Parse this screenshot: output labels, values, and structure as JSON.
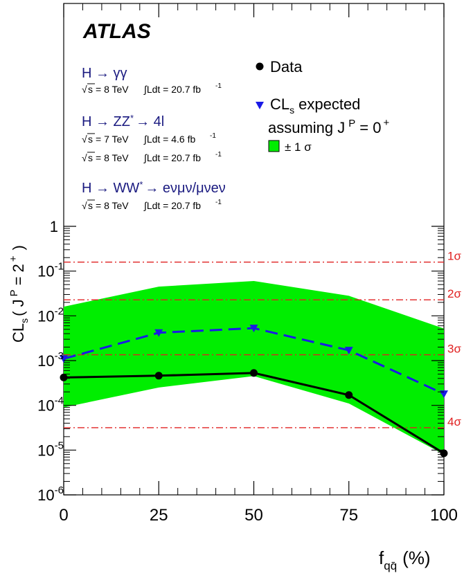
{
  "chart_data": {
    "type": "line",
    "experiment": "ATLAS",
    "xlabel_main": "f",
    "xlabel_sub": "qq̄",
    "xlabel_unit": "(%)",
    "ylabel_main": "CL",
    "ylabel_sub": "s",
    "ylabel_rest": "( J",
    "ylabel_sup": "P",
    "ylabel_tail": "= 2",
    "ylabel_plus": "+",
    "ylabel_close": ")",
    "xlim": [
      0,
      100
    ],
    "ylim": [
      1e-06,
      1
    ],
    "yscale": "log",
    "x_ticks": [
      "0",
      "25",
      "50",
      "75",
      "100"
    ],
    "y_ticks": [
      {
        "base": "1",
        "exp": ""
      },
      {
        "base": "10",
        "exp": "-1"
      },
      {
        "base": "10",
        "exp": "-2"
      },
      {
        "base": "10",
        "exp": "-3"
      },
      {
        "base": "10",
        "exp": "-4"
      },
      {
        "base": "10",
        "exp": "-5"
      },
      {
        "base": "10",
        "exp": "-6"
      }
    ],
    "x": [
      0,
      25,
      50,
      75,
      100
    ],
    "series": [
      {
        "name": "Data",
        "style": "solid-black-circles",
        "color": "#000000",
        "values": [
          0.00042,
          0.00046,
          0.00053,
          0.00017,
          8.5e-06
        ]
      },
      {
        "name": "CL",
        "name_sub": "s",
        "name_rest": "expected",
        "line2": "assuming J",
        "line2_sup": "P",
        "line2_tail": "= 0",
        "line2_plus": "+",
        "style": "dashed-blue-triangles",
        "color": "#1a1ae6",
        "values": [
          0.0011,
          0.0042,
          0.0053,
          0.0017,
          0.00018
        ]
      }
    ],
    "band": {
      "name": "± 1 σ",
      "color": "#00ee00",
      "upper": [
        0.016,
        0.045,
        0.06,
        0.028,
        0.0052
      ],
      "lower": [
        9e-05,
        0.00025,
        0.00045,
        0.00011,
        8e-06
      ]
    },
    "sigma_lines": [
      {
        "label": "1σ",
        "value": 0.159
      },
      {
        "label": "2σ",
        "value": 0.0228
      },
      {
        "label": "3σ",
        "value": 0.00135
      },
      {
        "label": "4σ",
        "value": 3.17e-05
      }
    ],
    "annotations": [
      {
        "channel": "H → γγ",
        "lines": [
          {
            "sqrt": "s",
            "energy": "= 8 TeV",
            "lumi": "∫Ldt = 20.7 fb",
            "exp": "-1"
          }
        ]
      },
      {
        "channel": "H → ZZ",
        "channel_sup": "*",
        "channel_tail": "→ 4l",
        "lines": [
          {
            "sqrt": "s",
            "energy": "= 7 TeV",
            "lumi": "∫Ldt = 4.6 fb",
            "exp": "-1"
          },
          {
            "sqrt": "s",
            "energy": "= 8 TeV",
            "lumi": "∫Ldt = 20.7 fb",
            "exp": "-1"
          }
        ]
      },
      {
        "channel": "H → WW",
        "channel_sup": "*",
        "channel_tail": "→ eνμν/μνeν",
        "lines": [
          {
            "sqrt": "s",
            "energy": "= 8 TeV",
            "lumi": "∫Ldt = 20.7 fb",
            "exp": "-1"
          }
        ]
      }
    ],
    "legend_position": "top-right",
    "grid": false,
    "colors": {
      "sigma_line": "#e02020",
      "band": "#00ee00",
      "expected": "#1a1ae6",
      "data": "#000000",
      "annotation": "#1a1a80"
    }
  }
}
